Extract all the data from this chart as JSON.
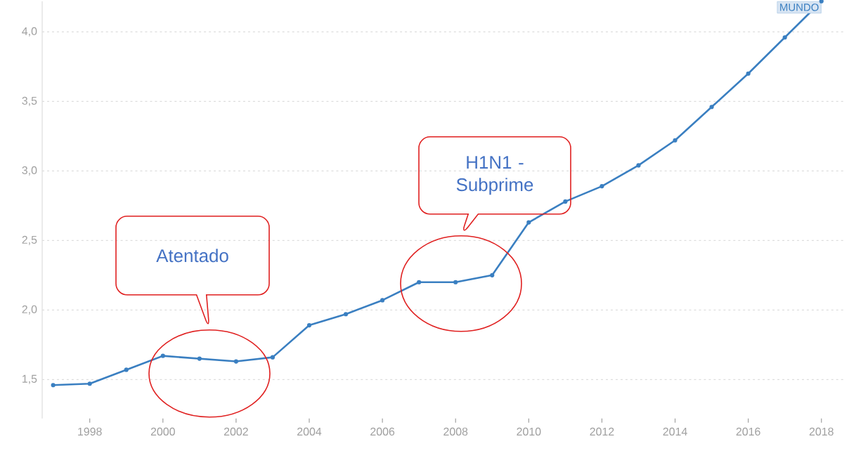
{
  "chart_data": {
    "type": "line",
    "x": [
      1997,
      1998,
      1999,
      2000,
      2001,
      2002,
      2003,
      2004,
      2005,
      2006,
      2007,
      2008,
      2009,
      2010,
      2011,
      2012,
      2013,
      2014,
      2015,
      2016,
      2017,
      2018
    ],
    "series": [
      {
        "name": "MUNDO",
        "color": "#3a7fc1",
        "values": [
          1.46,
          1.47,
          1.57,
          1.67,
          1.65,
          1.63,
          1.66,
          1.89,
          1.97,
          2.07,
          2.2,
          2.2,
          2.25,
          2.63,
          2.78,
          2.89,
          3.04,
          3.22,
          3.46,
          3.7,
          3.96,
          4.22
        ]
      }
    ],
    "xlim": [
      1996.7,
      2018.6
    ],
    "ylim": [
      1.22,
      4.22
    ],
    "xticks": [
      1998,
      2000,
      2002,
      2004,
      2006,
      2008,
      2010,
      2012,
      2014,
      2016,
      2018
    ],
    "yticks": [
      {
        "value": 1.5,
        "label": "1,5"
      },
      {
        "value": 2.0,
        "label": "2,0"
      },
      {
        "value": 2.5,
        "label": "2,5"
      },
      {
        "value": 3.0,
        "label": "3,0"
      },
      {
        "value": 3.5,
        "label": "3,5"
      },
      {
        "value": 4.0,
        "label": "4,0"
      }
    ],
    "grid": "y",
    "marker": "circle",
    "line_style": "solid",
    "annotations": [
      "Atentado",
      "H1N1 - Subprime"
    ]
  }
}
